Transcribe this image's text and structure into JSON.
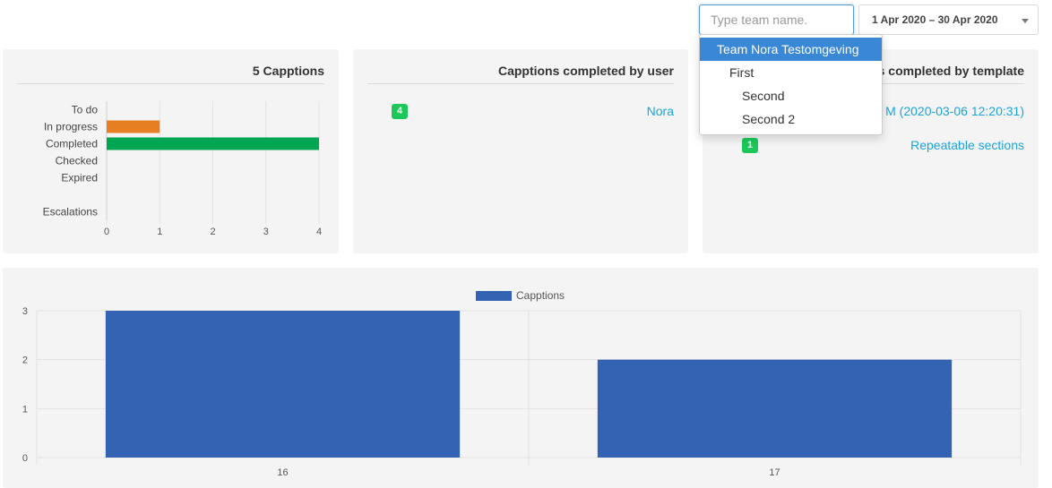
{
  "top": {
    "team_placeholder": "Type team name.",
    "team_value": "",
    "date_range": "1 Apr 2020 – 30 Apr 2020"
  },
  "team_dropdown": {
    "items": [
      {
        "label": "Team Nora Testomgeving",
        "level": 0,
        "selected": true
      },
      {
        "label": "First",
        "level": 1,
        "selected": false
      },
      {
        "label": "Second",
        "level": 2,
        "selected": false
      },
      {
        "label": "Second 2",
        "level": 2,
        "selected": false
      }
    ]
  },
  "status_panel": {
    "title": "5 Capptions"
  },
  "user_panel": {
    "title": "Capptions completed by user",
    "rows": [
      {
        "count": "4",
        "name": "Nora"
      }
    ]
  },
  "template_panel": {
    "title": "s completed by template",
    "rows": [
      {
        "count": "",
        "name": "M (2020-03-06 12:20:31)"
      },
      {
        "count": "1",
        "name": "Repeatable sections"
      }
    ]
  },
  "chart_data": [
    {
      "type": "bar",
      "orientation": "horizontal",
      "categories": [
        "To do",
        "In progress",
        "Completed",
        "Checked",
        "Expired",
        "",
        "Escalations"
      ],
      "values": [
        0,
        1,
        4,
        0,
        0,
        0,
        0
      ],
      "colors": [
        "#e67e22",
        "#e67e22",
        "#00a651",
        "#00a651",
        "#00a651",
        "#00a651",
        "#00a651"
      ],
      "xlim": [
        0,
        4
      ],
      "xticks": [
        "0",
        "1",
        "2",
        "3",
        "4"
      ],
      "grid": true
    },
    {
      "type": "bar",
      "categories": [
        "16",
        "17"
      ],
      "series": [
        {
          "name": "Capptions",
          "values": [
            3,
            2
          ],
          "color": "#3463b4"
        }
      ],
      "ylim": [
        0,
        3
      ],
      "yticks": [
        "0",
        "1",
        "2",
        "3"
      ],
      "legend": "top-center",
      "grid": true
    }
  ]
}
